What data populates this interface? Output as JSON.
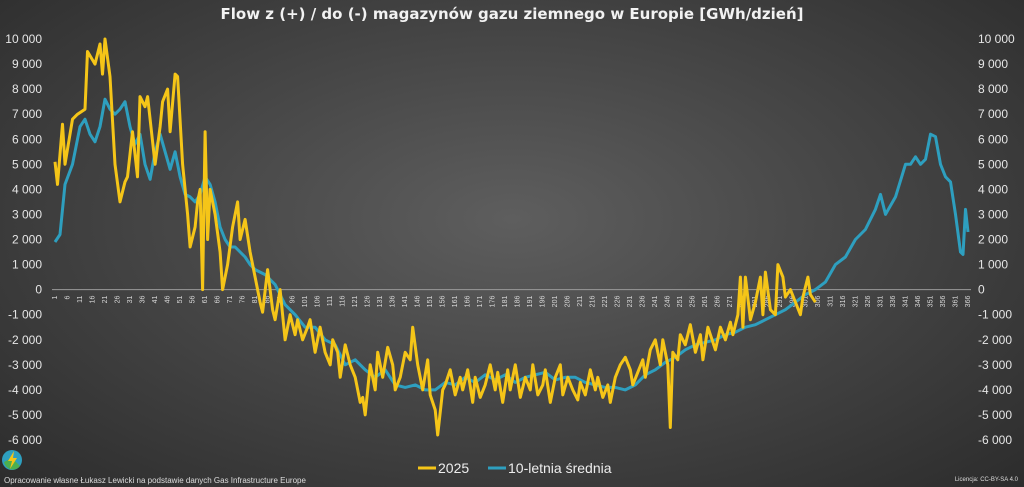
{
  "chart_data": {
    "type": "line",
    "title": "Flow z (+) / do (-) magazynów gazu ziemnego w Europie [GWh/dzień]",
    "xlabel": "",
    "ylabel": "",
    "xlim": [
      1,
      366
    ],
    "ylim": [
      -6000,
      10000
    ],
    "y_ticks": [
      10000,
      9000,
      8000,
      7000,
      6000,
      5000,
      4000,
      3000,
      2000,
      1000,
      0,
      -1000,
      -2000,
      -3000,
      -4000,
      -5000,
      -6000
    ],
    "y_tick_labels": [
      "10 000",
      "9 000",
      "8 000",
      "7 000",
      "6 000",
      "5 000",
      "4 000",
      "3 000",
      "2 000",
      "1 000",
      "0",
      "-1 000",
      "-2 000",
      "-3 000",
      "-4 000",
      "-5 000",
      "-6 000"
    ],
    "x_tick_step": 5,
    "grid": false,
    "legend_position": "bottom",
    "series": [
      {
        "name": "2025",
        "color": "#f5c518",
        "x": [
          1,
          2,
          4,
          5,
          8,
          10,
          13,
          14,
          17,
          19,
          20,
          21,
          23,
          25,
          27,
          29,
          30,
          32,
          34,
          35,
          37,
          38,
          39,
          41,
          43,
          44,
          46,
          47,
          49,
          50,
          52,
          54,
          55,
          57,
          58,
          59,
          60,
          61,
          62,
          63,
          65,
          67,
          68,
          70,
          72,
          74,
          75,
          77,
          79,
          81,
          83,
          84,
          86,
          88,
          89,
          91,
          93,
          95,
          97,
          98,
          100,
          102,
          103,
          105,
          107,
          109,
          111,
          112,
          114,
          115,
          117,
          119,
          121,
          123,
          124,
          125,
          127,
          129,
          130,
          132,
          134,
          136,
          137,
          139,
          141,
          143,
          144,
          146,
          148,
          150,
          151,
          153,
          154,
          156,
          157,
          159,
          161,
          163,
          164,
          166,
          168,
          169,
          171,
          173,
          175,
          177,
          178,
          180,
          182,
          183,
          185,
          187,
          189,
          191,
          192,
          194,
          196,
          197,
          199,
          201,
          203,
          204,
          206,
          208,
          210,
          211,
          213,
          215,
          217,
          218,
          220,
          222,
          223,
          225,
          227,
          229,
          231,
          232,
          234,
          236,
          237,
          239,
          241,
          243,
          244,
          246,
          247,
          248,
          250,
          251,
          253,
          255,
          257,
          259,
          260,
          262,
          263,
          265,
          267,
          269,
          271,
          272,
          274,
          275,
          276,
          277,
          279,
          281,
          283,
          284,
          285,
          287,
          289,
          290,
          292,
          293,
          295,
          297,
          299,
          300,
          302,
          303,
          305
        ],
        "y": [
          5100,
          4200,
          6600,
          5000,
          6800,
          7000,
          7200,
          9500,
          9000,
          9800,
          8600,
          10000,
          8500,
          5000,
          3500,
          4300,
          4500,
          6300,
          4500,
          7700,
          7300,
          7700,
          6800,
          5000,
          6500,
          7500,
          8000,
          6300,
          8600,
          8500,
          5000,
          3000,
          1700,
          2500,
          3500,
          4000,
          0,
          6300,
          2000,
          4000,
          3000,
          1500,
          0,
          1000,
          2500,
          3500,
          2000,
          2800,
          1500,
          500,
          -500,
          -900,
          800,
          -800,
          -1200,
          0,
          -2000,
          -1000,
          -1800,
          -1200,
          -2000,
          -1500,
          -1200,
          -2500,
          -1500,
          -2500,
          -3000,
          -2000,
          -2500,
          -3500,
          -2200,
          -3000,
          -3500,
          -4500,
          -4300,
          -5000,
          -3000,
          -4000,
          -2500,
          -3500,
          -2300,
          -3000,
          -4000,
          -3500,
          -2500,
          -2800,
          -1500,
          -3000,
          -4000,
          -2800,
          -4200,
          -4800,
          -5800,
          -4000,
          -3800,
          -3200,
          -4200,
          -3500,
          -4000,
          -3200,
          -4500,
          -3500,
          -4300,
          -3800,
          -3000,
          -4000,
          -3300,
          -4500,
          -3200,
          -4000,
          -3000,
          -4300,
          -3500,
          -4000,
          -3000,
          -4200,
          -3800,
          -3200,
          -4500,
          -3500,
          -3000,
          -4200,
          -3500,
          -4000,
          -4400,
          -3700,
          -4200,
          -3200,
          -4000,
          -3500,
          -4300,
          -3800,
          -4500,
          -3500,
          -3000,
          -2700,
          -3200,
          -3800,
          -3300,
          -2800,
          -3500,
          -2400,
          -2000,
          -3000,
          -2000,
          -3000,
          -5500,
          -2500,
          -2800,
          -1800,
          -2200,
          -1400,
          -2500,
          -1800,
          -2800,
          -1500,
          -1800,
          -2400,
          -1500,
          -2000,
          -1300,
          -1800,
          -1000,
          500,
          -1500,
          500,
          -1200,
          -500,
          500,
          -1000,
          700,
          -800,
          -1000,
          1000,
          500,
          -300,
          0,
          -500,
          -1000,
          -300,
          500,
          -200,
          -500
        ]
      },
      {
        "name": "10-letnia średnia",
        "color": "#2e9fbf",
        "x": [
          1,
          3,
          5,
          8,
          11,
          13,
          15,
          17,
          19,
          21,
          23,
          25,
          27,
          29,
          31,
          33,
          35,
          37,
          39,
          41,
          43,
          45,
          47,
          49,
          51,
          53,
          55,
          57,
          59,
          61,
          63,
          65,
          67,
          69,
          71,
          73,
          75,
          77,
          79,
          81,
          85,
          89,
          93,
          97,
          101,
          105,
          109,
          113,
          117,
          121,
          125,
          129,
          133,
          137,
          141,
          145,
          149,
          153,
          157,
          161,
          165,
          169,
          173,
          177,
          181,
          185,
          189,
          193,
          197,
          201,
          205,
          209,
          213,
          217,
          221,
          225,
          229,
          233,
          237,
          241,
          245,
          249,
          253,
          257,
          261,
          265,
          269,
          273,
          277,
          281,
          285,
          289,
          293,
          297,
          301,
          305,
          309,
          313,
          317,
          321,
          325,
          329,
          331,
          333,
          337,
          341,
          343,
          345,
          347,
          349,
          351,
          353,
          355,
          357,
          359,
          361,
          363,
          364,
          365,
          366
        ],
        "y": [
          1900,
          2200,
          4200,
          5000,
          6500,
          6800,
          6200,
          5900,
          6500,
          7600,
          7200,
          7000,
          7200,
          7500,
          6500,
          5800,
          6200,
          5000,
          4400,
          5500,
          6200,
          5500,
          4800,
          5500,
          4500,
          3800,
          3700,
          3500,
          3800,
          4500,
          4200,
          3500,
          2500,
          2000,
          1700,
          1700,
          1500,
          1300,
          1000,
          800,
          600,
          200,
          -600,
          -1000,
          -1500,
          -1500,
          -2000,
          -2200,
          -3000,
          -2800,
          -3200,
          -3500,
          -3200,
          -3800,
          -3900,
          -3800,
          -4000,
          -4000,
          -3700,
          -3800,
          -3500,
          -3700,
          -3400,
          -3600,
          -3400,
          -3700,
          -3500,
          -3400,
          -3300,
          -3600,
          -3500,
          -3500,
          -3700,
          -3800,
          -3900,
          -3900,
          -4000,
          -3800,
          -3400,
          -3200,
          -2900,
          -2700,
          -2400,
          -2200,
          -2100,
          -2000,
          -1800,
          -1700,
          -1500,
          -1400,
          -1200,
          -1000,
          -800,
          -500,
          -200,
          0,
          300,
          1000,
          1300,
          2000,
          2400,
          3200,
          3800,
          3000,
          3700,
          5000,
          5000,
          5300,
          5000,
          5200,
          6200,
          6100,
          5000,
          4500,
          4300,
          3000,
          1500,
          1400,
          3200,
          2300
        ]
      }
    ]
  },
  "footer": {
    "source": "Opracowanie własne Łukasz Lewicki na podstawie danych Gas Infrastructure Europe",
    "license": "Licencja: CC-BY-SA 4.0",
    "logo_icon": "lightning-bolt-logo-icon"
  }
}
